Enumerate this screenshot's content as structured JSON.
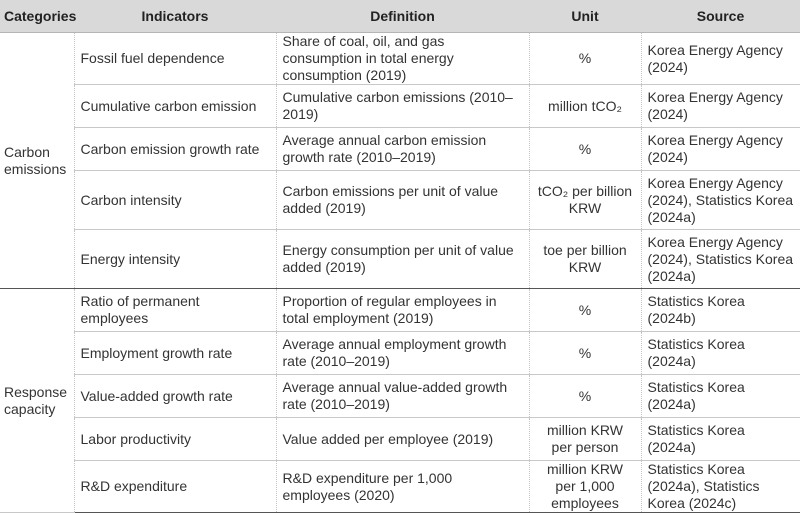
{
  "header": {
    "categories": "Categories",
    "indicators": "Indicators",
    "definition": "Definition",
    "unit": "Unit",
    "source": "Source"
  },
  "groups": [
    {
      "category": "Carbon emissions",
      "rows": [
        {
          "indicator": "Fossil fuel dependence",
          "definition": "Share of coal, oil, and gas consumption in total energy consumption (2019)",
          "unit": "%",
          "source": "Korea Energy Agency (2024)"
        },
        {
          "indicator": "Cumulative carbon emission",
          "definition": "Cumulative carbon emissions (2010–2019)",
          "unit": "million tCO₂",
          "source": "Korea Energy Agency (2024)"
        },
        {
          "indicator": "Carbon emission growth rate",
          "definition": "Average annual carbon emission growth rate (2010–2019)",
          "unit": "%",
          "source": "Korea Energy Agency (2024)"
        },
        {
          "indicator": "Carbon intensity",
          "definition": "Carbon emissions per unit of value added (2019)",
          "unit": "tCO₂ per billion KRW",
          "source": "Korea Energy Agency (2024), Statistics Korea (2024a)"
        },
        {
          "indicator": "Energy intensity",
          "definition": "Energy consumption per unit of value added (2019)",
          "unit": "toe per billion KRW",
          "source": "Korea Energy Agency (2024), Statistics Korea (2024a)"
        }
      ]
    },
    {
      "category": "Response capacity",
      "rows": [
        {
          "indicator": "Ratio of permanent employees",
          "definition": "Proportion of regular employees in total employment (2019)",
          "unit": "%",
          "source": "Statistics Korea (2024b)"
        },
        {
          "indicator": "Employment growth rate",
          "definition": "Average annual employment growth rate (2010–2019)",
          "unit": "%",
          "source": "Statistics Korea (2024a)"
        },
        {
          "indicator": "Value-added growth rate",
          "definition": "Average annual value-added growth rate (2010–2019)",
          "unit": "%",
          "source": "Statistics Korea (2024a)"
        },
        {
          "indicator": "Labor productivity",
          "definition": "Value added per employee (2019)",
          "unit": "million KRW per person",
          "source": "Statistics Korea (2024a)"
        },
        {
          "indicator": "R&D expenditure",
          "definition": "R&D expenditure per 1,000 employees (2020)",
          "unit": "million KRW per 1,000 employees",
          "source": "Statistics Korea (2024a), Statistics Korea (2024c)"
        }
      ]
    }
  ]
}
